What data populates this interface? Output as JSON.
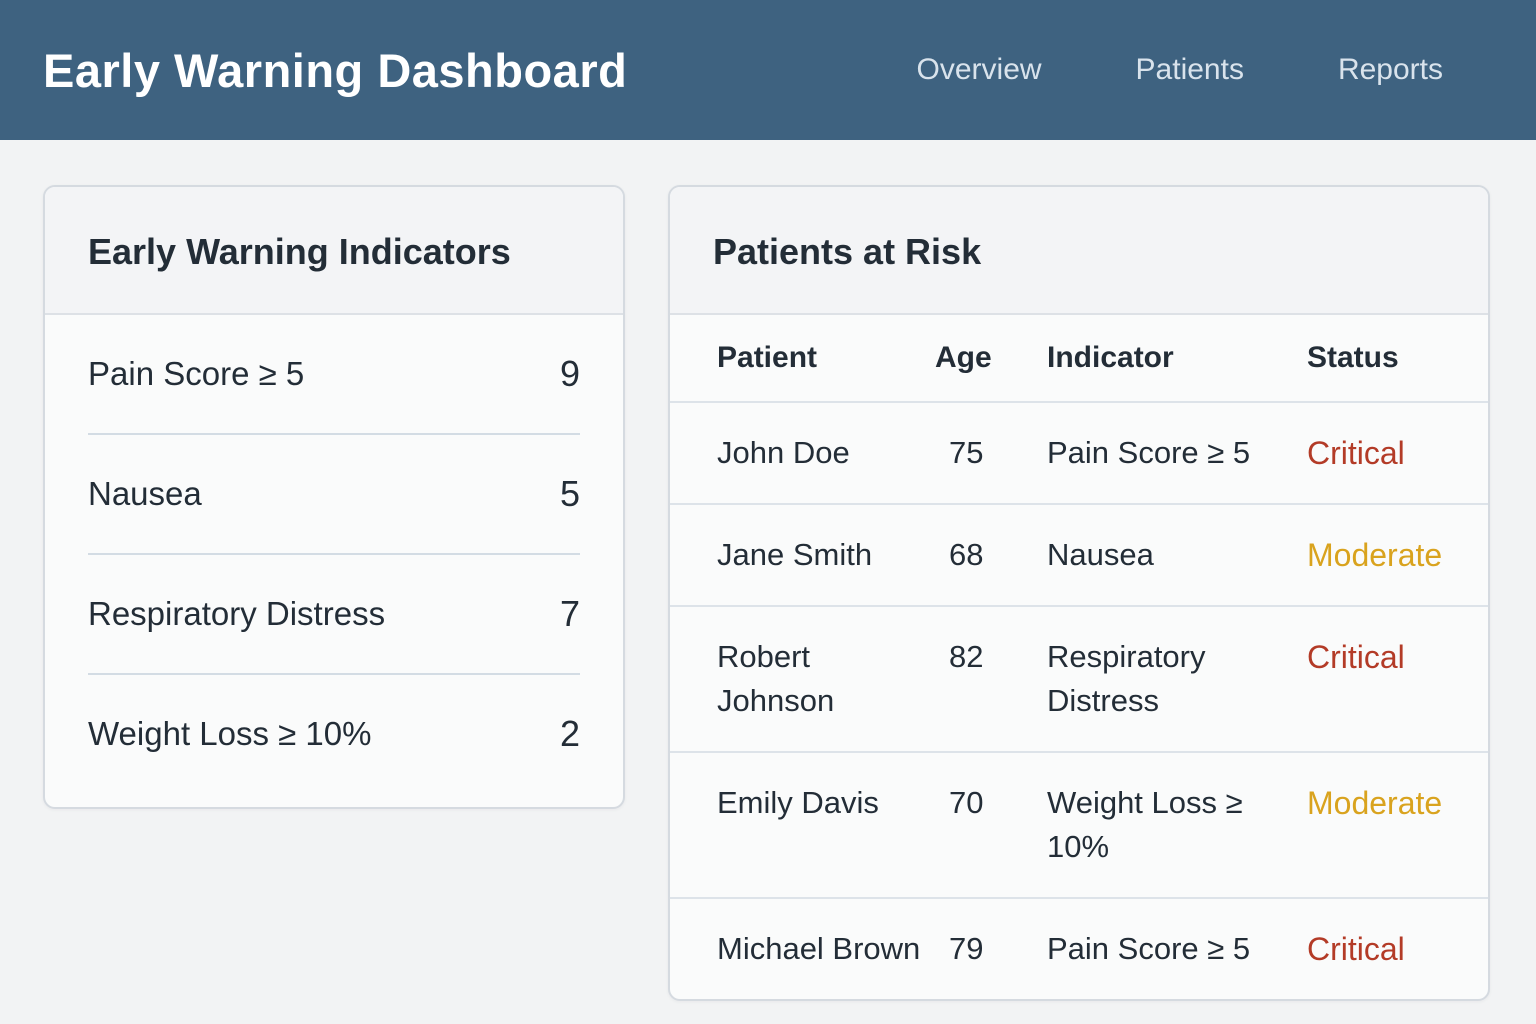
{
  "header": {
    "title": "Early Warning Dashboard",
    "nav": [
      {
        "label": "Overview"
      },
      {
        "label": "Patients"
      },
      {
        "label": "Reports"
      }
    ]
  },
  "indicators_card": {
    "title": "Early Warning Indicators",
    "items": [
      {
        "label": "Pain Score ≥ 5",
        "value": "9"
      },
      {
        "label": "Nausea",
        "value": "5"
      },
      {
        "label": "Respiratory Distress",
        "value": "7"
      },
      {
        "label": "Weight Loss ≥ 10%",
        "value": "2"
      }
    ]
  },
  "patients_card": {
    "title": "Patients at Risk",
    "columns": [
      "Patient",
      "Age",
      "Indicator",
      "Status"
    ],
    "rows": [
      {
        "patient": "John Doe",
        "age": "75",
        "indicator": "Pain Score ≥ 5",
        "status": "Critical",
        "status_level": "critical"
      },
      {
        "patient": "Jane Smith",
        "age": "68",
        "indicator": "Nausea",
        "status": "Moderate",
        "status_level": "moderate"
      },
      {
        "patient": "Robert Johnson",
        "age": "82",
        "indicator": "Respiratory Distress",
        "status": "Critical",
        "status_level": "critical"
      },
      {
        "patient": "Emily Davis",
        "age": "70",
        "indicator": "Weight Loss ≥ 10%",
        "status": "Moderate",
        "status_level": "moderate"
      },
      {
        "patient": "Michael Brown",
        "age": "79",
        "indicator": "Pain Score ≥ 5",
        "status": "Critical",
        "status_level": "critical"
      }
    ]
  },
  "colors": {
    "header_bg": "#3e6280",
    "page_bg": "#f2f3f4",
    "critical": "#b33b27",
    "moderate": "#d9a31e"
  }
}
